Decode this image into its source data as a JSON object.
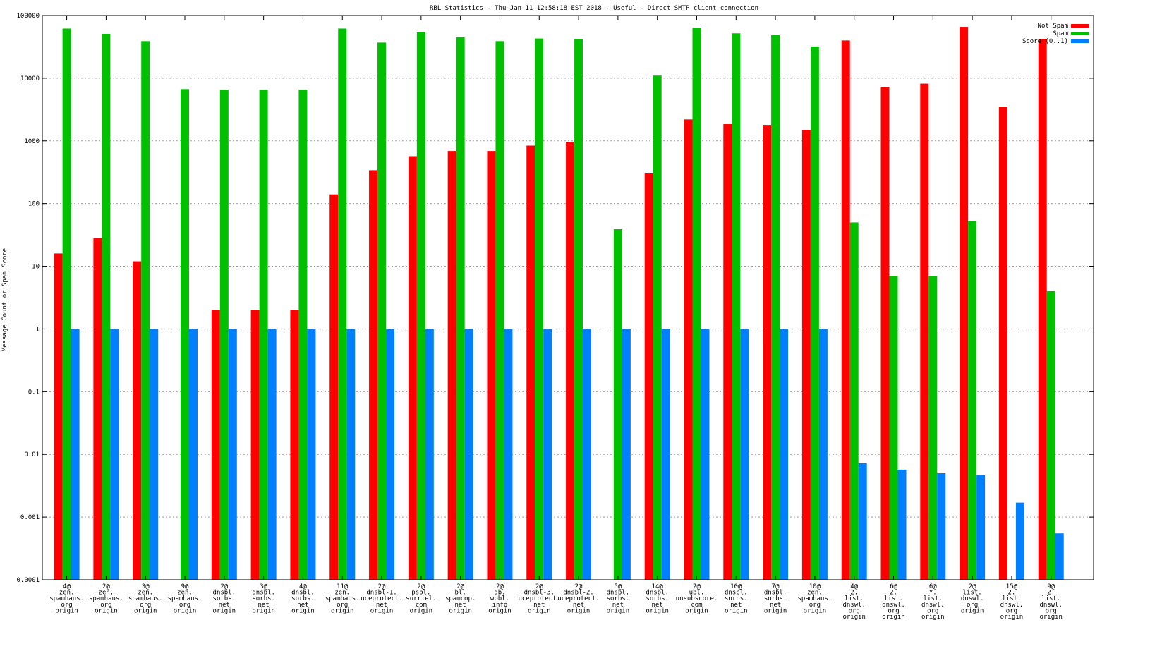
{
  "chart_data": {
    "type": "bar",
    "title": "RBL Statistics - Thu Jan 11 12:58:18 EST 2018 - Useful - Direct SMTP client connection",
    "xlabel": "",
    "ylabel": "Message Count or Spam Score",
    "yscale": "log",
    "ylim": [
      0.0001,
      100000
    ],
    "yticks": [
      "0.0001",
      "0.001",
      "0.01",
      "0.1",
      "1",
      "10",
      "100",
      "1000",
      "10000",
      "100000"
    ],
    "grid": true,
    "legend_position": "top-right",
    "categories": [
      [
        "4@",
        "zen.",
        "spamhaus.",
        "org",
        "origin"
      ],
      [
        "2@",
        "zen.",
        "spamhaus.",
        "org",
        "origin"
      ],
      [
        "3@",
        "zen.",
        "spamhaus.",
        "org",
        "origin"
      ],
      [
        "9@",
        "zen.",
        "spamhaus.",
        "org",
        "origin"
      ],
      [
        "2@",
        "dnsbl.",
        "sorbs.",
        "net",
        "origin"
      ],
      [
        "3@",
        "dnsbl.",
        "sorbs.",
        "net",
        "origin"
      ],
      [
        "4@",
        "dnsbl.",
        "sorbs.",
        "net",
        "origin"
      ],
      [
        "11@",
        "zen.",
        "spamhaus.",
        "org",
        "origin"
      ],
      [
        "2@",
        "dnsbl-1.",
        "uceprotect.",
        "net",
        "origin"
      ],
      [
        "2@",
        "psbl.",
        "surriel.",
        "com",
        "origin"
      ],
      [
        "2@",
        "bl.",
        "spamcop.",
        "net",
        "origin"
      ],
      [
        "2@",
        "db.",
        "wpbl.",
        "info",
        "origin"
      ],
      [
        "2@",
        "dnsbl-3.",
        "uceprotect.",
        "net",
        "origin"
      ],
      [
        "2@",
        "dnsbl-2.",
        "uceprotect.",
        "net",
        "origin"
      ],
      [
        "5@",
        "dnsbl.",
        "sorbs.",
        "net",
        "origin"
      ],
      [
        "14@",
        "dnsbl.",
        "sorbs.",
        "net",
        "origin"
      ],
      [
        "2@",
        "ubl.",
        "unsubscore.",
        "com",
        "origin"
      ],
      [
        "10@",
        "dnsbl.",
        "sorbs.",
        "net",
        "origin"
      ],
      [
        "7@",
        "dnsbl.",
        "sorbs.",
        "net",
        "origin"
      ],
      [
        "10@",
        "zen.",
        "spamhaus.",
        "org",
        "origin"
      ],
      [
        "4@",
        "2.",
        "list.",
        "dnswl.",
        "org",
        "origin"
      ],
      [
        "6@",
        "2.",
        "list.",
        "dnswl.",
        "org",
        "origin"
      ],
      [
        "6@",
        "Y.",
        "list.",
        "dnswl.",
        "org",
        "origin"
      ],
      [
        "2@",
        "list.",
        "dnswl.",
        "org",
        "origin"
      ],
      [
        "15@",
        "2.",
        "list.",
        "dnswl.",
        "org",
        "origin"
      ],
      [
        "9@",
        "2.",
        "list.",
        "dnswl.",
        "org",
        "origin"
      ]
    ],
    "series": [
      {
        "name": "Not Spam",
        "color": "#ff0000",
        "values": [
          16,
          28,
          12,
          null,
          2,
          2,
          2,
          140,
          340,
          570,
          690,
          690,
          840,
          970,
          null,
          310,
          2200,
          1850,
          1800,
          1500,
          40000,
          7300,
          8200,
          66000,
          3500,
          42000
        ]
      },
      {
        "name": "Spam",
        "color": "#00c000",
        "values": [
          62000,
          51000,
          39000,
          6700,
          6600,
          6600,
          6600,
          62000,
          37000,
          54000,
          45000,
          39000,
          43000,
          42000,
          39,
          11000,
          64000,
          52000,
          49000,
          32000,
          50,
          7,
          7,
          53,
          null,
          4
        ]
      },
      {
        "name": "Score (0..1)",
        "color": "#0080ff",
        "values": [
          1,
          1,
          1,
          1,
          1,
          1,
          1,
          1,
          1,
          1,
          1,
          1,
          1,
          1,
          1,
          1,
          1,
          1,
          1,
          1,
          0.0072,
          0.0057,
          0.005,
          0.0047,
          0.0017,
          0.00055
        ]
      }
    ]
  }
}
